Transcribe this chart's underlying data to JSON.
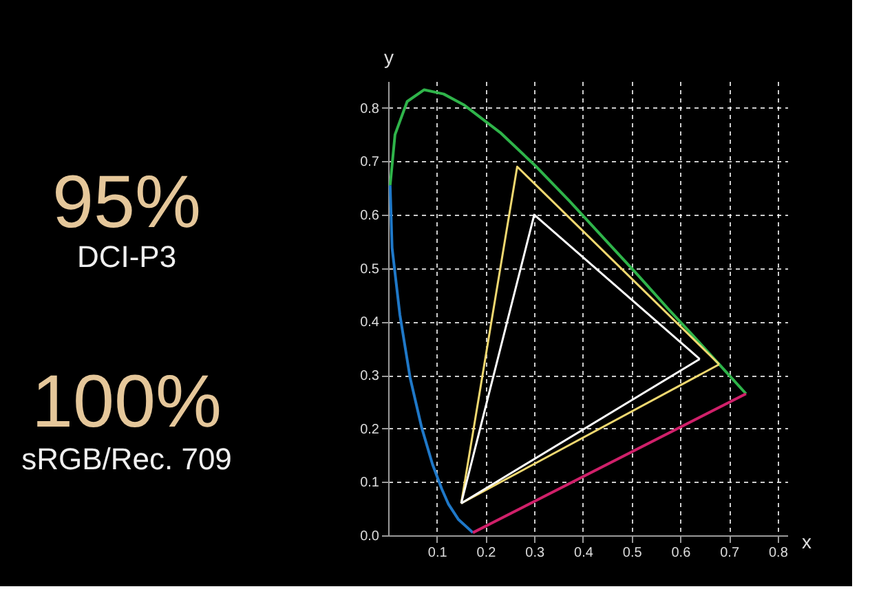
{
  "chart_data": {
    "type": "line",
    "xlabel": "x",
    "ylabel": "y",
    "annotations": [
      "95%",
      "DCI-P3",
      "100%",
      "sRGB/Rec. 709"
    ],
    "xlim": [
      0,
      0.82
    ],
    "ylim": [
      0,
      0.85
    ],
    "xticks": [
      0.1,
      0.2,
      0.3,
      0.4,
      0.5,
      0.6,
      0.7,
      0.8
    ],
    "yticks": [
      {
        "value": 0,
        "label": "0.0"
      },
      0.1,
      0.2,
      0.3,
      0.4,
      0.5,
      0.6,
      0.7,
      0.8
    ],
    "grid": true,
    "marker": "none",
    "line_style": "solid",
    "series": [
      {
        "color": "#2fb44a",
        "x": [
          0.004,
          0.014,
          0.039,
          0.074,
          0.114,
          0.155,
          0.23,
          0.302,
          0.373,
          0.444,
          0.513,
          0.575,
          0.627,
          0.692,
          0.735
        ],
        "values": [
          0.655,
          0.75,
          0.812,
          0.834,
          0.826,
          0.806,
          0.754,
          0.692,
          0.625,
          0.555,
          0.487,
          0.424,
          0.373,
          0.308,
          0.265
        ]
      },
      {
        "color": "#1f78c8",
        "x": [
          0.004,
          0.008,
          0.024,
          0.045,
          0.069,
          0.091,
          0.11,
          0.124,
          0.144,
          0.174
        ],
        "values": [
          0.655,
          0.538,
          0.413,
          0.295,
          0.201,
          0.133,
          0.087,
          0.058,
          0.03,
          0.005
        ]
      },
      {
        "color": "#d0206a",
        "x": [
          0.174,
          0.735
        ],
        "values": [
          0.005,
          0.265
        ]
      },
      {
        "color": "#f0d870",
        "x": [
          0.15,
          0.265,
          0.68
        ],
        "values": [
          0.06,
          0.69,
          0.32
        ]
      },
      {
        "color": "#f0d870",
        "x": [
          0.15,
          0.68
        ],
        "values": [
          0.06,
          0.32
        ]
      },
      {
        "color": "#ffffff",
        "x": [
          0.15,
          0.3,
          0.64
        ],
        "values": [
          0.06,
          0.6,
          0.33
        ]
      },
      {
        "color": "#ffffff",
        "x": [
          0.15,
          0.64
        ],
        "values": [
          0.06,
          0.33
        ]
      }
    ]
  }
}
